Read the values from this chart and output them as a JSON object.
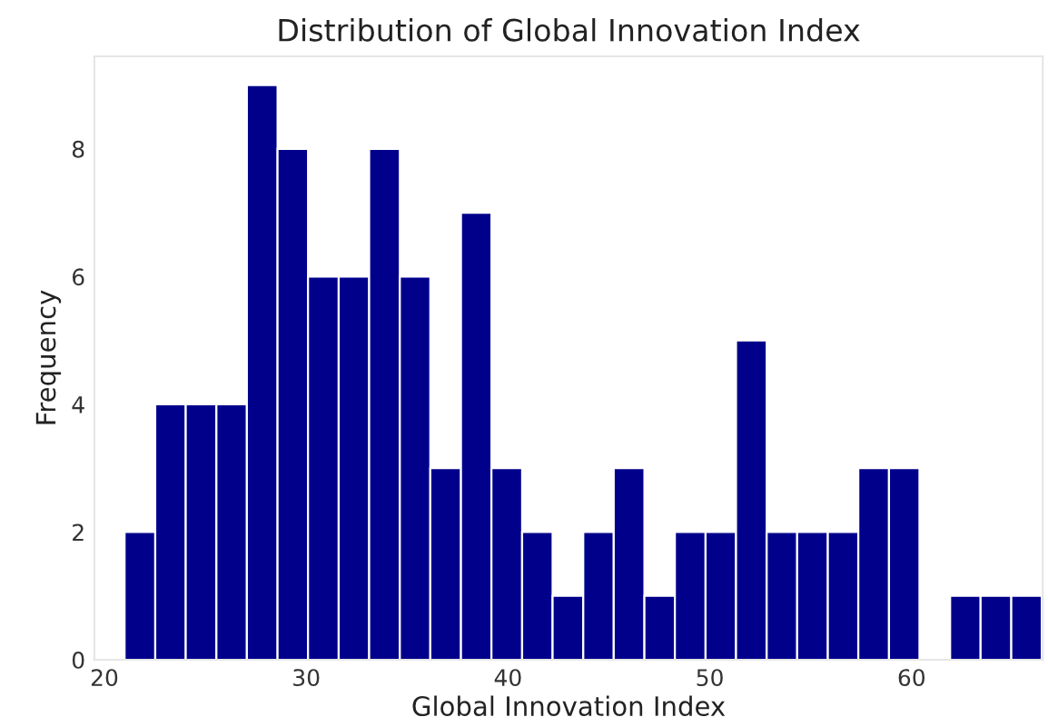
{
  "chart_data": {
    "type": "histogram",
    "title": "Distribution of Global Innovation Index",
    "xlabel": "Global Innovation Index",
    "ylabel": "Frequency",
    "bins": [
      21.0,
      22.52,
      24.03,
      25.55,
      27.06,
      28.58,
      30.09,
      31.61,
      33.12,
      34.64,
      36.15,
      37.67,
      39.18,
      40.7,
      42.21,
      43.73,
      45.24,
      46.76,
      48.27,
      49.79,
      51.3,
      52.82,
      54.33,
      55.85,
      57.36,
      58.88,
      60.39,
      61.91,
      63.42,
      64.94,
      66.45
    ],
    "values": [
      2,
      4,
      4,
      4,
      9,
      8,
      6,
      6,
      8,
      6,
      3,
      7,
      3,
      2,
      1,
      2,
      3,
      1,
      2,
      2,
      5,
      2,
      2,
      2,
      3,
      3,
      0,
      1,
      1,
      1
    ],
    "color": "#00008b",
    "xlim": [
      19.5,
      66.5
    ],
    "ylim": [
      0,
      9.45
    ],
    "xticks": [
      20,
      30,
      40,
      50,
      60
    ],
    "yticks": [
      0,
      2,
      4,
      6,
      8
    ],
    "grid": false
  }
}
